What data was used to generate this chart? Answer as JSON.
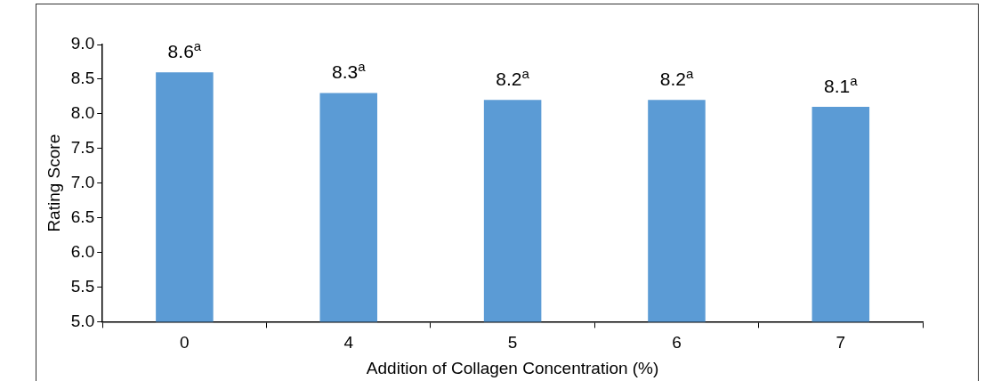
{
  "chart_data": {
    "type": "bar",
    "xlabel": "Addition of Collagen Concentration (%)",
    "ylabel": "Rating Score",
    "categories": [
      "0",
      "4",
      "5",
      "6",
      "7"
    ],
    "values": [
      8.6,
      8.3,
      8.2,
      8.2,
      8.1
    ],
    "value_labels": [
      "8.6$^{a}$",
      "8.3$^{a}$",
      "8.2$^{a}$",
      "8.2$^{a}$",
      "8.1$^{a}$"
    ],
    "color": "#5b9bd5",
    "ylim": [
      5,
      9
    ],
    "yticks": [
      {
        "value": 5,
        "label": "5.0"
      },
      {
        "value": 5.5,
        "label": "5.5"
      },
      {
        "value": 6,
        "label": "6.0"
      },
      {
        "value": 6.5,
        "label": "6.5"
      },
      {
        "value": 7,
        "label": "7.0"
      },
      {
        "value": 7.5,
        "label": "7.5"
      },
      {
        "value": 8,
        "label": "8.0"
      },
      {
        "value": 8.5,
        "label": "8.5"
      },
      {
        "value": 9,
        "label": "9.0"
      }
    ],
    "grid": false,
    "legend": false
  }
}
